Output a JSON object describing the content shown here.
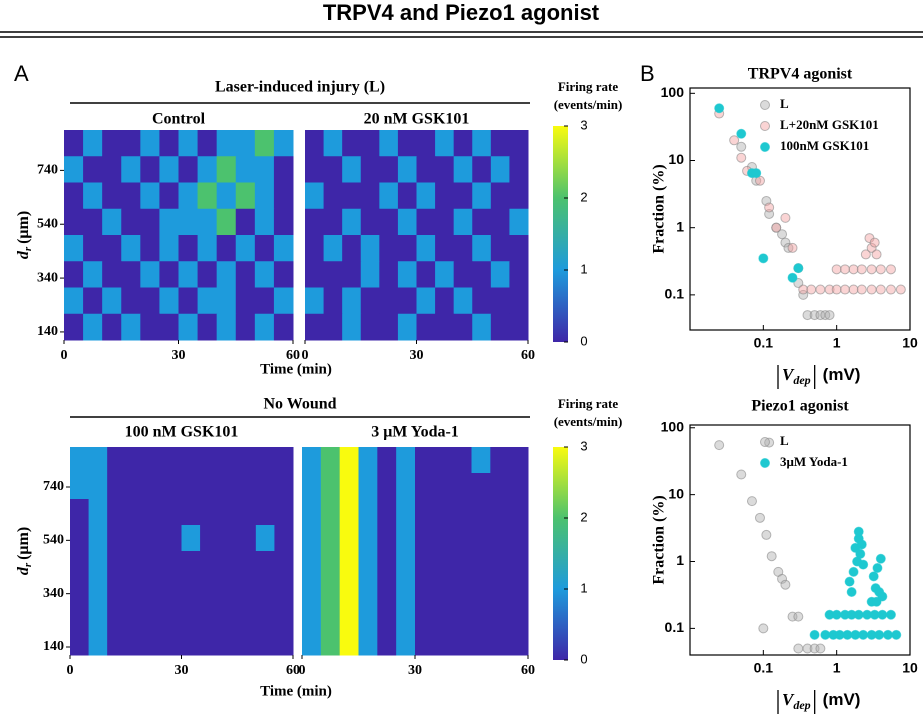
{
  "title": "TRPV4 and Piezo1 agonist",
  "panels": [
    "A",
    "B"
  ],
  "groups": [
    {
      "title": "Laser-induced injury (L)",
      "xlabel": "Time (min)",
      "ylabel": {
        "symbol": "d",
        "subscript": "r",
        "unit": "(μm)"
      }
    },
    {
      "title": "No Wound",
      "xlabel": "Time (min)",
      "ylabel": {
        "symbol": "d",
        "subscript": "r",
        "unit": "(μm)"
      }
    }
  ],
  "colorbar": {
    "title": "Firing rate",
    "subtitle": "(events/min)",
    "zlim": [
      0,
      3
    ],
    "ticks": [
      0,
      1,
      2,
      3
    ],
    "colors": [
      "#3e26a8",
      "#1e9bdc",
      "#4cc26e",
      "#f9fb0e"
    ]
  },
  "chart_data": [
    {
      "type": "heatmap",
      "group": 0,
      "title": "Control",
      "xlim": [
        0,
        60
      ],
      "xticks": [
        0,
        30,
        60
      ],
      "ylim": [
        110,
        890
      ],
      "yticks": [
        140,
        340,
        540,
        740
      ],
      "z": [
        [
          0,
          1,
          0,
          0,
          1,
          0,
          1,
          0,
          1,
          1,
          2,
          1
        ],
        [
          1,
          0,
          0,
          1,
          0,
          1,
          0,
          1,
          2,
          1,
          1,
          0
        ],
        [
          0,
          1,
          0,
          0,
          1,
          0,
          1,
          2,
          1,
          2,
          1,
          0
        ],
        [
          0,
          0,
          1,
          0,
          0,
          1,
          1,
          1,
          2,
          0,
          1,
          0
        ],
        [
          1,
          0,
          0,
          1,
          0,
          1,
          0,
          1,
          0,
          1,
          0,
          1
        ],
        [
          0,
          1,
          0,
          0,
          1,
          0,
          1,
          0,
          1,
          0,
          1,
          0
        ],
        [
          1,
          0,
          1,
          0,
          0,
          1,
          0,
          1,
          1,
          0,
          0,
          1
        ],
        [
          0,
          1,
          0,
          1,
          0,
          0,
          1,
          0,
          1,
          0,
          1,
          0
        ]
      ]
    },
    {
      "type": "heatmap",
      "group": 0,
      "title": "20 nM GSK101",
      "xlim": [
        0,
        60
      ],
      "xticks": [
        0,
        30,
        60
      ],
      "ylim": [
        110,
        890
      ],
      "yticks": [
        140,
        340,
        540,
        740
      ],
      "z": [
        [
          0,
          1,
          0,
          0,
          1,
          0,
          0,
          1,
          0,
          1,
          0,
          0
        ],
        [
          0,
          0,
          1,
          0,
          0,
          1,
          0,
          0,
          1,
          0,
          1,
          0
        ],
        [
          1,
          0,
          0,
          0,
          1,
          0,
          1,
          0,
          0,
          1,
          0,
          0
        ],
        [
          0,
          0,
          1,
          0,
          0,
          1,
          0,
          0,
          1,
          0,
          0,
          1
        ],
        [
          0,
          1,
          0,
          1,
          0,
          0,
          1,
          0,
          0,
          1,
          0,
          0
        ],
        [
          0,
          0,
          0,
          1,
          0,
          1,
          0,
          1,
          0,
          0,
          1,
          0
        ],
        [
          1,
          0,
          1,
          0,
          0,
          0,
          1,
          0,
          1,
          0,
          0,
          0
        ],
        [
          0,
          0,
          1,
          0,
          0,
          1,
          0,
          0,
          0,
          1,
          0,
          0
        ]
      ]
    },
    {
      "type": "heatmap",
      "group": 1,
      "title": "100 nM GSK101",
      "xlim": [
        0,
        60
      ],
      "xticks": [
        0,
        30,
        60
      ],
      "ylim": [
        110,
        890
      ],
      "yticks": [
        140,
        340,
        540,
        740
      ],
      "z": [
        [
          1,
          1,
          0,
          0,
          0,
          0,
          0,
          0,
          0,
          0,
          0,
          0
        ],
        [
          1,
          1,
          0,
          0,
          0,
          0,
          0,
          0,
          0,
          0,
          0,
          0
        ],
        [
          0,
          1,
          0,
          0,
          0,
          0,
          0,
          0,
          0,
          0,
          0,
          0
        ],
        [
          0,
          1,
          0,
          0,
          0,
          0,
          1,
          0,
          0,
          0,
          1,
          0
        ],
        [
          0,
          1,
          0,
          0,
          0,
          0,
          0,
          0,
          0,
          0,
          0,
          0
        ],
        [
          0,
          1,
          0,
          0,
          0,
          0,
          0,
          0,
          0,
          0,
          0,
          0
        ],
        [
          0,
          1,
          0,
          0,
          0,
          0,
          0,
          0,
          0,
          0,
          0,
          0
        ],
        [
          0,
          1,
          0,
          0,
          0,
          0,
          0,
          0,
          0,
          0,
          0,
          0
        ]
      ]
    },
    {
      "type": "heatmap",
      "group": 1,
      "title": "3 μM Yoda-1",
      "xlim": [
        0,
        60
      ],
      "xticks": [
        0,
        30,
        60
      ],
      "ylim": [
        110,
        890
      ],
      "yticks": [
        140,
        340,
        540,
        740
      ],
      "z": [
        [
          1,
          2,
          3,
          1,
          0,
          1,
          0,
          0,
          0,
          1,
          0,
          0
        ],
        [
          1,
          2,
          3,
          1,
          0,
          1,
          0,
          0,
          0,
          0,
          0,
          0
        ],
        [
          1,
          2,
          3,
          1,
          0,
          1,
          0,
          0,
          0,
          0,
          0,
          0
        ],
        [
          1,
          2,
          3,
          1,
          0,
          1,
          0,
          0,
          0,
          0,
          0,
          0
        ],
        [
          1,
          2,
          3,
          1,
          0,
          1,
          0,
          0,
          0,
          0,
          0,
          0
        ],
        [
          1,
          2,
          3,
          1,
          0,
          1,
          0,
          0,
          0,
          0,
          0,
          0
        ],
        [
          1,
          2,
          3,
          1,
          0,
          1,
          0,
          0,
          0,
          0,
          0,
          0
        ],
        [
          1,
          2,
          3,
          1,
          0,
          1,
          0,
          0,
          0,
          0,
          0,
          0
        ]
      ]
    },
    {
      "type": "scatter",
      "title": "TRPV4 agonist",
      "xlabel": {
        "symbol": "V",
        "subscript": "dep",
        "unit": "(mV)"
      },
      "ylabel": "Fraction (%)",
      "xscale": "log",
      "yscale": "log",
      "xlim": [
        0.01,
        10
      ],
      "ylim": [
        0.03,
        120
      ],
      "xticks": [
        0.1,
        1,
        10
      ],
      "yticks": [
        0.1,
        1,
        10,
        100
      ],
      "series": [
        {
          "name": "L",
          "color": "#b0b0b0",
          "x": [
            0.05,
            0.07,
            0.08,
            0.11,
            0.12,
            0.15,
            0.18,
            0.2,
            0.22,
            0.3,
            0.35,
            0.4,
            0.5,
            0.6,
            0.7,
            0.8
          ],
          "y": [
            16,
            8,
            5,
            2.5,
            1.6,
            1,
            0.8,
            0.6,
            0.5,
            0.15,
            0.1,
            0.05,
            0.05,
            0.05,
            0.05,
            0.05
          ]
        },
        {
          "name": "L+20nM GSK101",
          "color": "#f4a0a0",
          "x": [
            0.025,
            0.04,
            0.05,
            0.06,
            0.09,
            0.12,
            0.15,
            0.2,
            0.25,
            0.3,
            0.35,
            0.45,
            0.6,
            0.8,
            1,
            1.3,
            1.7,
            2.2,
            3,
            4,
            5.5,
            7.5,
            1,
            1.3,
            1.7,
            2.2,
            3,
            4,
            5.5,
            2.5,
            3,
            3.5,
            2.8,
            3.3
          ],
          "y": [
            50,
            20,
            11,
            7,
            5,
            2,
            1,
            1.4,
            0.5,
            0.25,
            0.12,
            0.12,
            0.12,
            0.12,
            0.12,
            0.12,
            0.12,
            0.12,
            0.12,
            0.12,
            0.12,
            0.12,
            0.24,
            0.24,
            0.24,
            0.24,
            0.24,
            0.24,
            0.24,
            0.4,
            0.5,
            0.4,
            0.7,
            0.6
          ]
        },
        {
          "name": "100nM GSK101",
          "color": "#1ec8d0",
          "x": [
            0.025,
            0.05,
            0.07,
            0.08,
            0.1,
            0.25,
            0.3
          ],
          "y": [
            60,
            25,
            6.5,
            6.5,
            0.35,
            0.18,
            0.25
          ]
        }
      ]
    },
    {
      "type": "scatter",
      "title": "Piezo1 agonist",
      "xlabel": {
        "symbol": "V",
        "subscript": "dep",
        "unit": "(mV)"
      },
      "ylabel": "Fraction (%)",
      "xscale": "log",
      "yscale": "log",
      "xlim": [
        0.01,
        10
      ],
      "ylim": [
        0.04,
        110
      ],
      "xticks": [
        0.1,
        1,
        10
      ],
      "yticks": [
        0.1,
        1,
        10,
        100
      ],
      "series": [
        {
          "name": "L",
          "color": "#b0b0b0",
          "x": [
            0.025,
            0.05,
            0.07,
            0.09,
            0.11,
            0.13,
            0.16,
            0.18,
            0.2,
            0.25,
            0.3,
            0.3,
            0.4,
            0.5,
            0.6,
            0.12,
            0.1
          ],
          "y": [
            55,
            20,
            8,
            4.5,
            2.5,
            1.2,
            0.7,
            0.55,
            0.45,
            0.15,
            0.15,
            0.05,
            0.05,
            0.05,
            0.05,
            60,
            0.1
          ]
        },
        {
          "name": "3μM Yoda-1",
          "color": "#1ec8d0",
          "x": [
            0.5,
            0.7,
            0.9,
            1.1,
            1.4,
            1.8,
            2.3,
            3,
            3.8,
            5,
            6.5,
            0.8,
            1,
            1.3,
            1.6,
            2,
            2.6,
            3.3,
            4.2,
            5.5,
            1.5,
            1.7,
            1.9,
            2.1,
            2.3,
            1.6,
            1.8,
            2,
            2.2,
            2.0,
            3,
            3.4,
            3.8,
            4.2,
            3.2,
            3.6,
            4,
            3.5
          ],
          "y": [
            0.08,
            0.08,
            0.08,
            0.08,
            0.08,
            0.08,
            0.08,
            0.08,
            0.08,
            0.08,
            0.08,
            0.16,
            0.16,
            0.16,
            0.16,
            0.16,
            0.16,
            0.16,
            0.16,
            0.16,
            0.5,
            0.7,
            1,
            1.3,
            0.9,
            0.35,
            1.6,
            2.2,
            1.8,
            2.8,
            0.25,
            0.4,
            0.35,
            0.3,
            0.6,
            0.8,
            1.1,
            0.25
          ]
        }
      ]
    }
  ]
}
